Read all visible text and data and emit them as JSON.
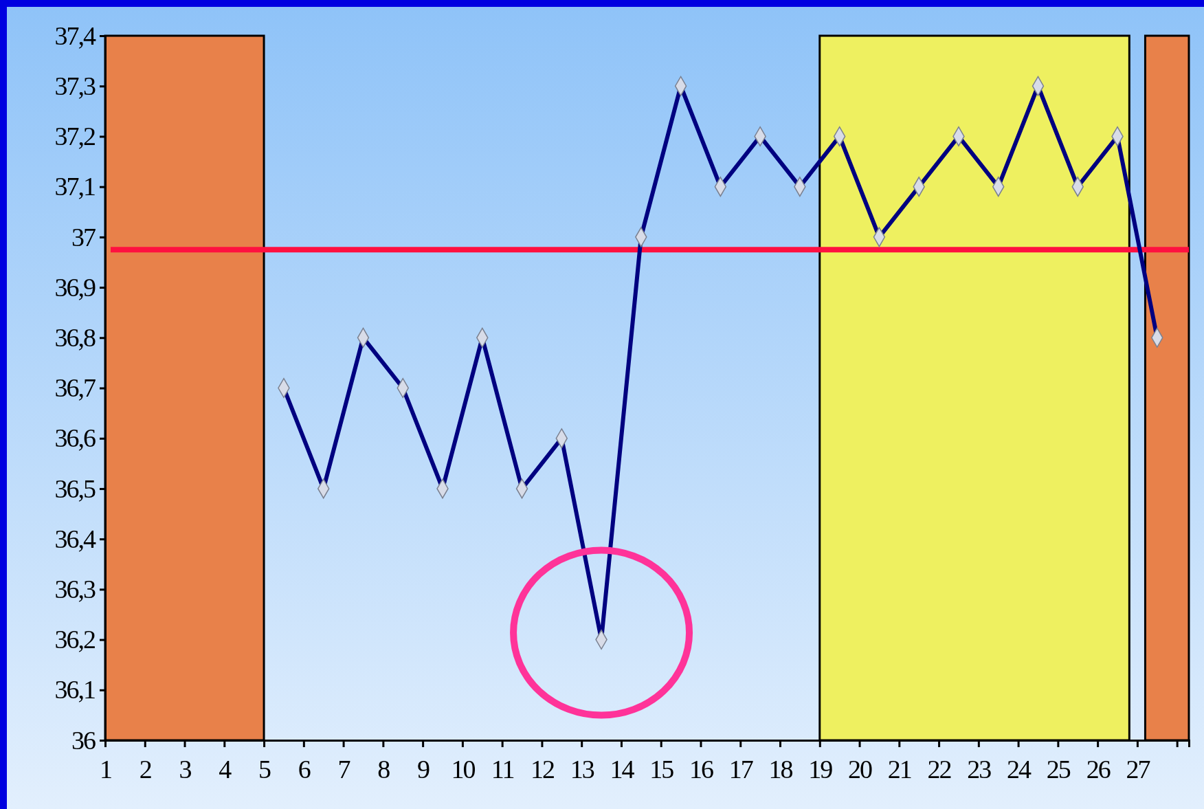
{
  "chart_data": {
    "type": "line",
    "x": [
      5.5,
      6.5,
      7.5,
      8.5,
      9.5,
      10.5,
      11.5,
      12.5,
      13.5,
      14.5,
      15.5,
      16.5,
      17.5,
      18.5,
      19.5,
      20.5,
      21.5,
      22.5,
      23.5,
      24.5,
      25.5,
      26.5,
      27.5
    ],
    "series": [
      {
        "color": "#000080",
        "values": [
          36.7,
          36.5,
          36.8,
          36.7,
          36.5,
          36.8,
          36.5,
          36.6,
          36.2,
          37.0,
          37.3,
          37.1,
          37.2,
          37.1,
          37.2,
          37.0,
          37.1,
          37.2,
          37.1,
          37.3,
          37.1,
          37.2,
          36.8
        ]
      }
    ],
    "xlim": [
      1,
      28.3
    ],
    "xticks": [
      1,
      2,
      3,
      4,
      5,
      6,
      7,
      8,
      9,
      10,
      11,
      12,
      13,
      14,
      15,
      16,
      17,
      18,
      19,
      20,
      21,
      22,
      23,
      24,
      25,
      26,
      27,
      {
        "value": 28,
        "label": null
      }
    ],
    "ylim": [
      36,
      37.4
    ],
    "yticks": [
      {
        "value": 36,
        "label": "36"
      },
      {
        "value": 36.1,
        "label": "36,1"
      },
      {
        "value": 36.2,
        "label": "36,2"
      },
      {
        "value": 36.3,
        "label": "36,3"
      },
      {
        "value": 36.4,
        "label": "36,4"
      },
      {
        "value": 36.5,
        "label": "36,5"
      },
      {
        "value": 36.6,
        "label": "36,6"
      },
      {
        "value": 36.7,
        "label": "36,7"
      },
      {
        "value": 36.8,
        "label": "36,8"
      },
      {
        "value": 36.9,
        "label": "36,9"
      },
      {
        "value": 37,
        "label": "37"
      },
      {
        "value": 37.1,
        "label": "37,1"
      },
      {
        "value": 37.2,
        "label": "37,2"
      },
      {
        "value": 37.3,
        "label": "37,3"
      },
      {
        "value": 37.4,
        "label": "37,4"
      }
    ],
    "bands": [
      {
        "axis": "x",
        "from": 1,
        "to": 5,
        "color": "#e8814a"
      },
      {
        "axis": "x",
        "from": 19,
        "to": 26.8,
        "color": "#eef060"
      },
      {
        "axis": "x",
        "from": 27.2,
        "to": 28.3,
        "color": "#e8814a"
      }
    ],
    "ref_lines": [
      {
        "axis": "y",
        "value": 36.975,
        "color": "#ff1040",
        "line_style": "solid"
      }
    ],
    "grid": false,
    "marker": "diamond",
    "line_style": "solid"
  }
}
